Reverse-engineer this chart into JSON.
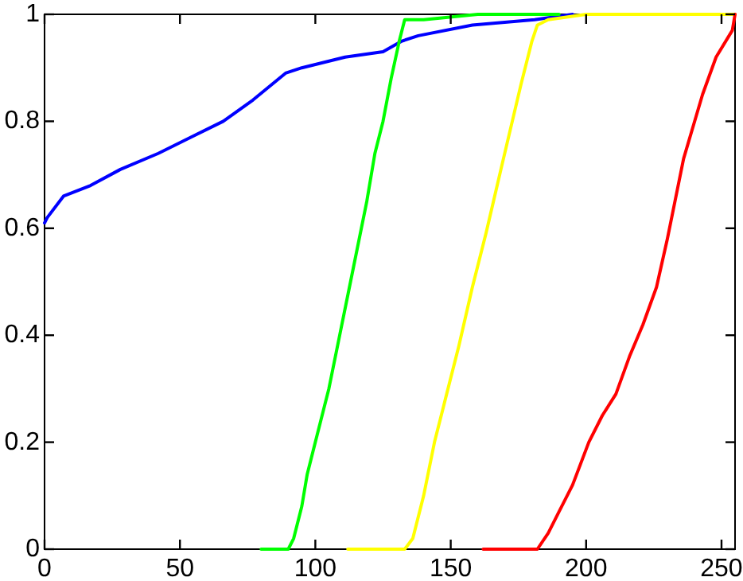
{
  "chart_data": {
    "type": "line",
    "xlim": [
      0,
      255
    ],
    "ylim": [
      0,
      1
    ],
    "xticks": [
      0,
      50,
      100,
      150,
      200,
      250
    ],
    "yticks": [
      0,
      0.2,
      0.4,
      0.6,
      0.8,
      1
    ],
    "grid": false,
    "marker": "none",
    "line_style": "solid",
    "series": [
      {
        "color": "#0000ff",
        "x": [
          0,
          1,
          7,
          17,
          28,
          42,
          54,
          66,
          77,
          89,
          95,
          111,
          125,
          132,
          138,
          158,
          181,
          195
        ],
        "values": [
          0.61,
          0.62,
          0.66,
          0.68,
          0.71,
          0.74,
          0.77,
          0.8,
          0.84,
          0.89,
          0.9,
          0.92,
          0.93,
          0.95,
          0.96,
          0.98,
          0.99,
          1
        ]
      },
      {
        "color": "#00ff00",
        "x": [
          80,
          90,
          92,
          95,
          97,
          100,
          105,
          109,
          113,
          119,
          122,
          125,
          128,
          131,
          133,
          140,
          160,
          190
        ],
        "values": [
          0,
          0,
          0.02,
          0.08,
          0.14,
          0.2,
          0.3,
          0.4,
          0.5,
          0.65,
          0.74,
          0.8,
          0.88,
          0.95,
          0.99,
          0.99,
          1,
          1
        ]
      },
      {
        "color": "#ffff00",
        "x": [
          112,
          133,
          136,
          140,
          144,
          148,
          153,
          158,
          163,
          169,
          176,
          180,
          182,
          186,
          200,
          255
        ],
        "values": [
          0,
          0,
          0.02,
          0.1,
          0.2,
          0.28,
          0.38,
          0.49,
          0.59,
          0.72,
          0.87,
          0.95,
          0.98,
          0.99,
          1,
          1
        ]
      },
      {
        "color": "#ff0000",
        "x": [
          162,
          182,
          186,
          190,
          195,
          201,
          206,
          211,
          216,
          221,
          226,
          230,
          236,
          243,
          248,
          254,
          255
        ],
        "values": [
          0,
          0,
          0.03,
          0.07,
          0.12,
          0.2,
          0.25,
          0.29,
          0.36,
          0.42,
          0.49,
          0.58,
          0.73,
          0.85,
          0.92,
          0.97,
          1
        ]
      }
    ]
  }
}
